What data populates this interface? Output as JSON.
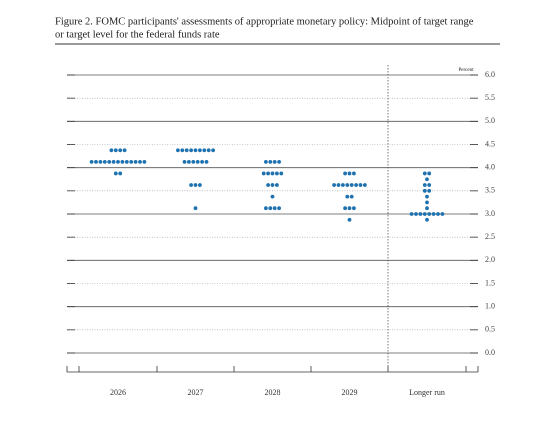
{
  "chart_data": {
    "type": "dot",
    "title": [
      "Figure 2. FOMC participants' assessments of appropriate monetary policy: Midpoint of target range",
      "or target level for the federal funds rate"
    ],
    "y_unit": "Percent",
    "color": "#1f72b0",
    "ylim": [
      0,
      6
    ],
    "yticks": [
      {
        "value": 0,
        "label": "0.0"
      },
      {
        "value": 0.5,
        "label": "0.5"
      },
      {
        "value": 1,
        "label": "1.0"
      },
      {
        "value": 1.5,
        "label": "1.5"
      },
      {
        "value": 2,
        "label": "2.0"
      },
      {
        "value": 2.5,
        "label": "2.5"
      },
      {
        "value": 3,
        "label": "3.0"
      },
      {
        "value": 3.5,
        "label": "3.5"
      },
      {
        "value": 4,
        "label": "4.0"
      },
      {
        "value": 4.5,
        "label": "4.5"
      },
      {
        "value": 5,
        "label": "5.0"
      },
      {
        "value": 5.5,
        "label": "5.5"
      },
      {
        "value": 6,
        "label": "6.0"
      }
    ],
    "categories": [
      "2026",
      "2027",
      "2028",
      "2029",
      "Longer run"
    ],
    "dots": [
      [
        {
          "value": 4.375,
          "count": 4
        },
        {
          "value": 4.125,
          "count": 13
        },
        {
          "value": 3.875,
          "count": 2
        }
      ],
      [
        {
          "value": 4.375,
          "count": 9
        },
        {
          "value": 4.125,
          "count": 6
        },
        {
          "value": 3.625,
          "count": 3
        },
        {
          "value": 3.125,
          "count": 1
        }
      ],
      [
        {
          "value": 4.125,
          "count": 4
        },
        {
          "value": 3.875,
          "count": 5
        },
        {
          "value": 3.625,
          "count": 3
        },
        {
          "value": 3.375,
          "count": 1
        },
        {
          "value": 3.125,
          "count": 4
        }
      ],
      [
        {
          "value": 3.875,
          "count": 3
        },
        {
          "value": 3.625,
          "count": 8
        },
        {
          "value": 3.375,
          "count": 2
        },
        {
          "value": 3.125,
          "count": 3
        },
        {
          "value": 2.875,
          "count": 1
        }
      ],
      [
        {
          "value": 3.875,
          "count": 2
        },
        {
          "value": 3.75,
          "count": 1
        },
        {
          "value": 3.625,
          "count": 2
        },
        {
          "value": 3.5,
          "count": 2
        },
        {
          "value": 3.375,
          "count": 1
        },
        {
          "value": 3.25,
          "count": 1
        },
        {
          "value": 3.125,
          "count": 1
        },
        {
          "value": 3,
          "count": 8
        },
        {
          "value": 2.875,
          "count": 1
        }
      ]
    ]
  }
}
